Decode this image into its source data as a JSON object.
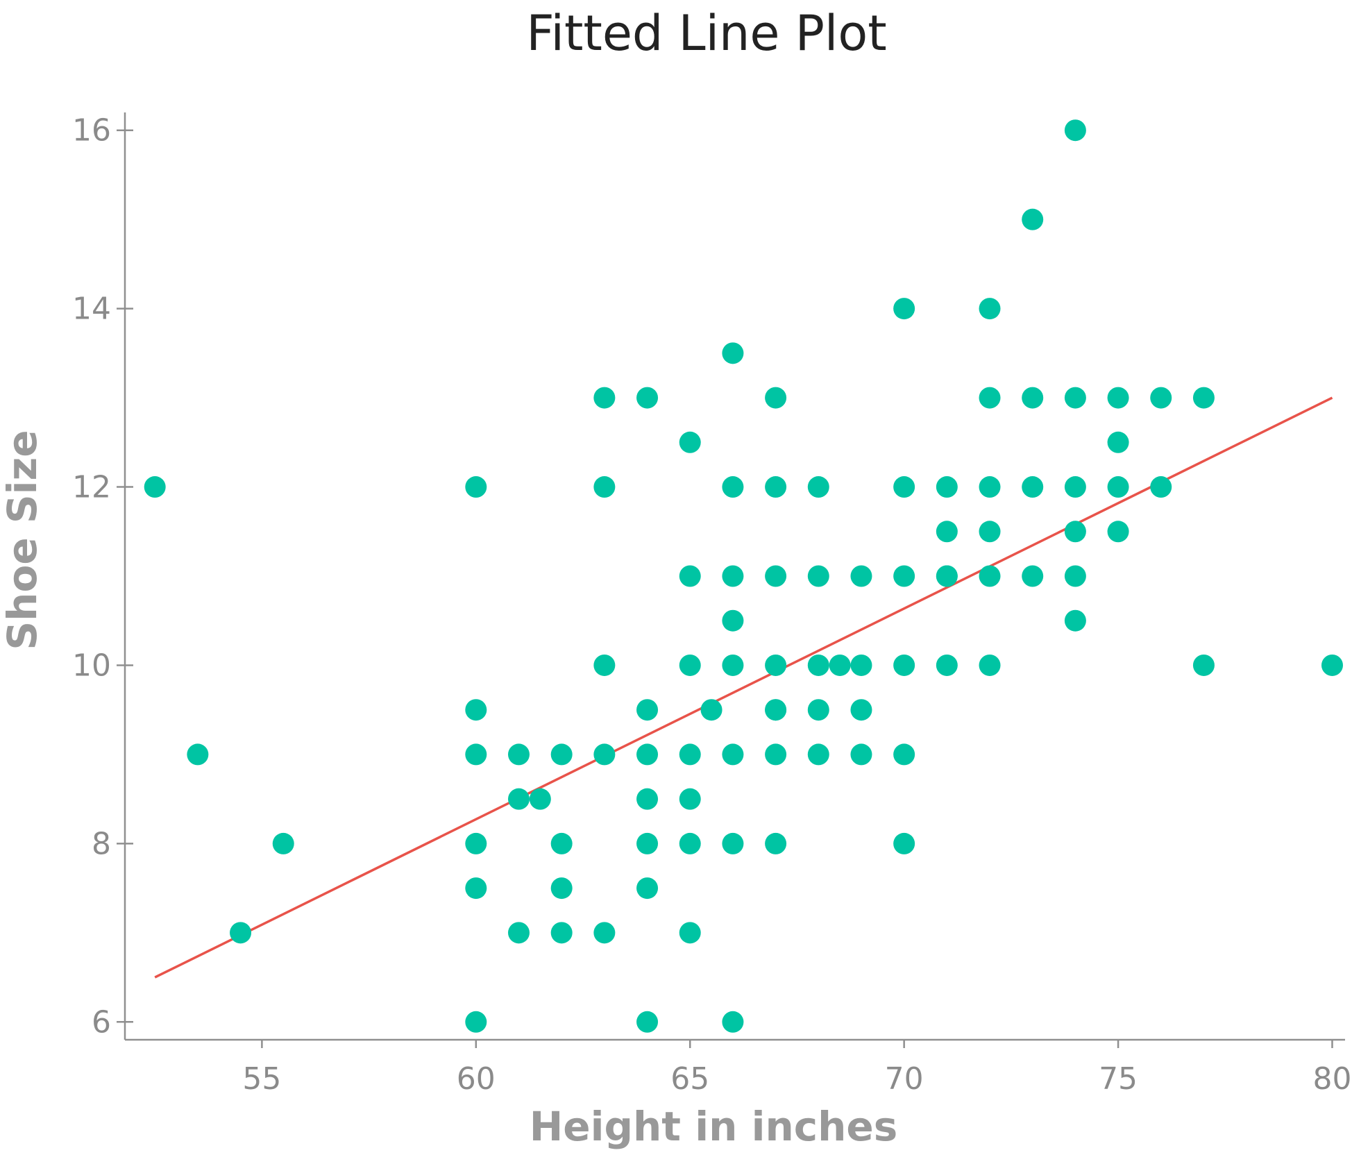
{
  "chart_data": {
    "type": "scatter",
    "title": "Fitted Line Plot",
    "xlabel": "Height in inches",
    "ylabel": "Shoe Size",
    "xlim": [
      51.8,
      80.3
    ],
    "ylim": [
      5.8,
      16.2
    ],
    "xticks": [
      55,
      60,
      65,
      70,
      75,
      80
    ],
    "yticks": [
      6,
      8,
      10,
      12,
      14,
      16
    ],
    "grid": false,
    "point_color": "#00c4a3",
    "line_color": "#e8534a",
    "fit_line": {
      "x": [
        52.5,
        80.0
      ],
      "y": [
        6.5,
        13.0
      ]
    },
    "points": [
      {
        "x": 52.5,
        "y": 12.0
      },
      {
        "x": 53.5,
        "y": 9.0
      },
      {
        "x": 54.5,
        "y": 7.0
      },
      {
        "x": 55.5,
        "y": 8.0
      },
      {
        "x": 60,
        "y": 12.0
      },
      {
        "x": 60,
        "y": 9.5
      },
      {
        "x": 60,
        "y": 9.0
      },
      {
        "x": 60,
        "y": 8.0
      },
      {
        "x": 60,
        "y": 7.5
      },
      {
        "x": 60,
        "y": 6.0
      },
      {
        "x": 61,
        "y": 9.0
      },
      {
        "x": 61,
        "y": 8.5
      },
      {
        "x": 61,
        "y": 7.0
      },
      {
        "x": 61.5,
        "y": 8.5
      },
      {
        "x": 62,
        "y": 9.0
      },
      {
        "x": 62,
        "y": 8.0
      },
      {
        "x": 62,
        "y": 7.5
      },
      {
        "x": 62,
        "y": 7.0
      },
      {
        "x": 63,
        "y": 13.0
      },
      {
        "x": 63,
        "y": 12.0
      },
      {
        "x": 63,
        "y": 10.0
      },
      {
        "x": 63,
        "y": 9.0
      },
      {
        "x": 63,
        "y": 7.0
      },
      {
        "x": 64,
        "y": 13.0
      },
      {
        "x": 64,
        "y": 9.5
      },
      {
        "x": 64,
        "y": 9.0
      },
      {
        "x": 64,
        "y": 8.5
      },
      {
        "x": 64,
        "y": 8.0
      },
      {
        "x": 64,
        "y": 7.5
      },
      {
        "x": 64,
        "y": 6.0
      },
      {
        "x": 65,
        "y": 12.5
      },
      {
        "x": 65,
        "y": 11.0
      },
      {
        "x": 65,
        "y": 10.0
      },
      {
        "x": 65,
        "y": 9.0
      },
      {
        "x": 65,
        "y": 8.5
      },
      {
        "x": 65,
        "y": 8.0
      },
      {
        "x": 65,
        "y": 7.0
      },
      {
        "x": 65.5,
        "y": 9.5
      },
      {
        "x": 66,
        "y": 13.5
      },
      {
        "x": 66,
        "y": 12.0
      },
      {
        "x": 66,
        "y": 11.0
      },
      {
        "x": 66,
        "y": 10.5
      },
      {
        "x": 66,
        "y": 10.0
      },
      {
        "x": 66,
        "y": 9.0
      },
      {
        "x": 66,
        "y": 8.0
      },
      {
        "x": 66,
        "y": 6.0
      },
      {
        "x": 67,
        "y": 13.0
      },
      {
        "x": 67,
        "y": 12.0
      },
      {
        "x": 67,
        "y": 11.0
      },
      {
        "x": 67,
        "y": 10.0
      },
      {
        "x": 67,
        "y": 9.5
      },
      {
        "x": 67,
        "y": 9.5
      },
      {
        "x": 67,
        "y": 9.0
      },
      {
        "x": 67,
        "y": 8.0
      },
      {
        "x": 68,
        "y": 12.0
      },
      {
        "x": 68,
        "y": 11.0
      },
      {
        "x": 68,
        "y": 10.0
      },
      {
        "x": 68,
        "y": 9.5
      },
      {
        "x": 68,
        "y": 9.0
      },
      {
        "x": 68.5,
        "y": 10.0
      },
      {
        "x": 69,
        "y": 11.0
      },
      {
        "x": 69,
        "y": 10.0
      },
      {
        "x": 69,
        "y": 9.5
      },
      {
        "x": 69,
        "y": 9.0
      },
      {
        "x": 70,
        "y": 14.0
      },
      {
        "x": 70,
        "y": 12.0
      },
      {
        "x": 70,
        "y": 11.0
      },
      {
        "x": 70,
        "y": 10.0
      },
      {
        "x": 70,
        "y": 9.0
      },
      {
        "x": 70,
        "y": 8.0
      },
      {
        "x": 71,
        "y": 12.0
      },
      {
        "x": 71,
        "y": 11.5
      },
      {
        "x": 71,
        "y": 11.0
      },
      {
        "x": 71,
        "y": 11.0
      },
      {
        "x": 71,
        "y": 10.0
      },
      {
        "x": 72,
        "y": 14.0
      },
      {
        "x": 72,
        "y": 13.0
      },
      {
        "x": 72,
        "y": 12.0
      },
      {
        "x": 72,
        "y": 11.5
      },
      {
        "x": 72,
        "y": 11.0
      },
      {
        "x": 72,
        "y": 10.0
      },
      {
        "x": 73,
        "y": 15.0
      },
      {
        "x": 73,
        "y": 13.0
      },
      {
        "x": 73,
        "y": 12.0
      },
      {
        "x": 73,
        "y": 11.0
      },
      {
        "x": 74,
        "y": 16.0
      },
      {
        "x": 74,
        "y": 13.0
      },
      {
        "x": 74,
        "y": 12.0
      },
      {
        "x": 74,
        "y": 11.5
      },
      {
        "x": 74,
        "y": 11.0
      },
      {
        "x": 74,
        "y": 10.5
      },
      {
        "x": 75,
        "y": 13.0
      },
      {
        "x": 75,
        "y": 12.5
      },
      {
        "x": 75,
        "y": 12.0
      },
      {
        "x": 75,
        "y": 11.5
      },
      {
        "x": 76,
        "y": 13.0
      },
      {
        "x": 76,
        "y": 12.0
      },
      {
        "x": 77,
        "y": 13.0
      },
      {
        "x": 77,
        "y": 10.0
      },
      {
        "x": 80,
        "y": 10.0
      }
    ]
  }
}
